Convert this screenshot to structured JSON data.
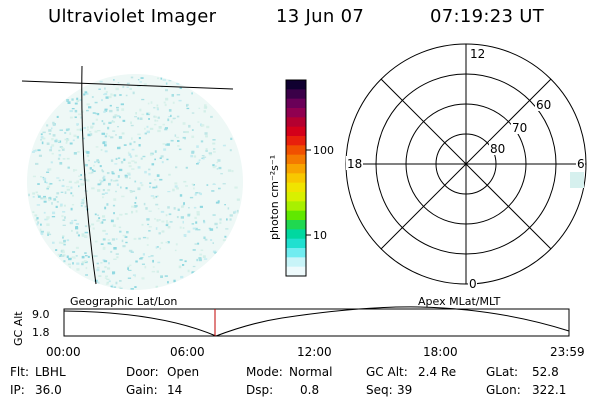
{
  "header": {
    "title": "Ultraviolet Imager",
    "date": "13 Jun 07",
    "time": "07:19:23 UT"
  },
  "colorbar": {
    "unit_label": "photon cm⁻²s⁻¹",
    "ticks": [
      "100",
      "10"
    ],
    "colors": [
      "#100030",
      "#3a0048",
      "#6a0058",
      "#900050",
      "#b40030",
      "#d4001a",
      "#e8200c",
      "#f05000",
      "#f47a00",
      "#f8a400",
      "#f8c800",
      "#f0e400",
      "#d8f000",
      "#a8f000",
      "#60e800",
      "#20d850",
      "#00d8a0",
      "#20e0d0",
      "#70ecf0",
      "#c8f4f8",
      "#eefafc"
    ]
  },
  "polar_plot": {
    "mlt_labels": {
      "top": "12",
      "bottom": "0",
      "left": "18",
      "right": "6"
    },
    "lat_labels": [
      "60",
      "70",
      "80"
    ]
  },
  "timeline": {
    "left_label": "Geographic Lat/Lon",
    "right_label": "Apex MLat/MLT",
    "axis_label": "GC Alt",
    "y_ticks": [
      "9.0",
      "1.8"
    ],
    "x_ticks": [
      "00:00",
      "06:00",
      "12:00",
      "18:00",
      "23:59"
    ],
    "line_color": "#000000",
    "marker_color": "#c00000"
  },
  "status": {
    "flt_label": "Flt:",
    "flt_value": "LBHL",
    "ip_label": "IP:",
    "ip_value": "36.0",
    "door_label": "Door:",
    "door_value": "Open",
    "gain_label": "Gain:",
    "gain_value": "14",
    "mode_label": "Mode:",
    "mode_value": "Normal",
    "dsp_label": "Dsp:",
    "dsp_value": "0.8",
    "gcalt_label": "GC Alt:",
    "gcalt_value": "2.4 Re",
    "seq_label": "Seq:",
    "seq_value": "39",
    "glat_label": "GLat:",
    "glat_value": "52.8",
    "glon_label": "GLon:",
    "glon_value": "322.1"
  }
}
